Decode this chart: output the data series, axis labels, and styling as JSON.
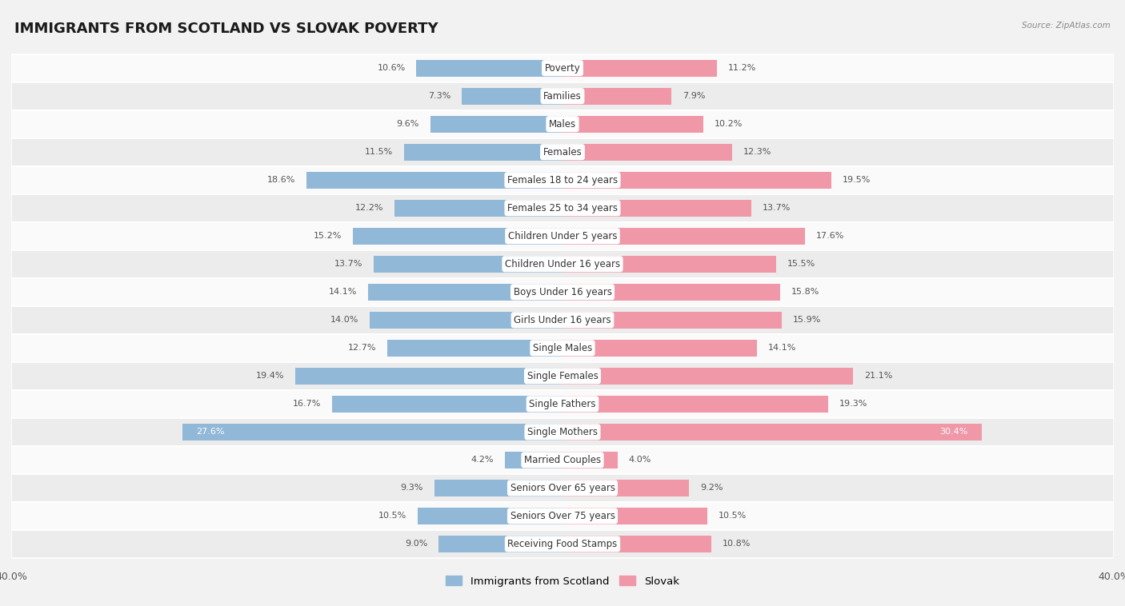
{
  "title": "IMMIGRANTS FROM SCOTLAND VS SLOVAK POVERTY",
  "source": "Source: ZipAtlas.com",
  "categories": [
    "Poverty",
    "Families",
    "Males",
    "Females",
    "Females 18 to 24 years",
    "Females 25 to 34 years",
    "Children Under 5 years",
    "Children Under 16 years",
    "Boys Under 16 years",
    "Girls Under 16 years",
    "Single Males",
    "Single Females",
    "Single Fathers",
    "Single Mothers",
    "Married Couples",
    "Seniors Over 65 years",
    "Seniors Over 75 years",
    "Receiving Food Stamps"
  ],
  "scotland_values": [
    10.6,
    7.3,
    9.6,
    11.5,
    18.6,
    12.2,
    15.2,
    13.7,
    14.1,
    14.0,
    12.7,
    19.4,
    16.7,
    27.6,
    4.2,
    9.3,
    10.5,
    9.0
  ],
  "slovak_values": [
    11.2,
    7.9,
    10.2,
    12.3,
    19.5,
    13.7,
    17.6,
    15.5,
    15.8,
    15.9,
    14.1,
    21.1,
    19.3,
    30.4,
    4.0,
    9.2,
    10.5,
    10.8
  ],
  "scotland_color": "#92b8d8",
  "slovak_color": "#f097a8",
  "scotland_label": "Immigrants from Scotland",
  "slovak_label": "Slovak",
  "background_color": "#f2f2f2",
  "row_color_odd": "#fafafa",
  "row_color_even": "#ececec",
  "axis_limit": 40.0,
  "title_fontsize": 13,
  "label_fontsize": 8.5,
  "value_fontsize": 8.0,
  "bar_height": 0.6
}
